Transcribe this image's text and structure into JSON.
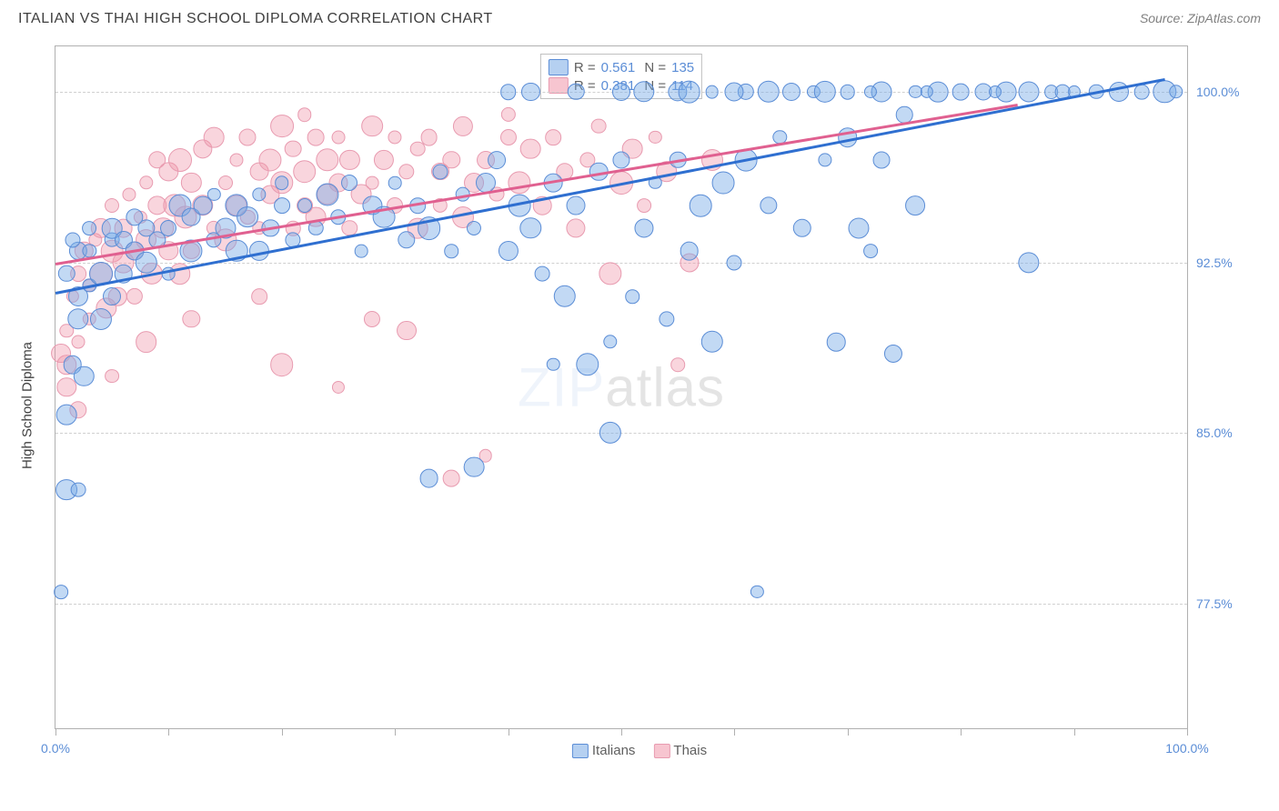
{
  "title": "ITALIAN VS THAI HIGH SCHOOL DIPLOMA CORRELATION CHART",
  "source": "Source: ZipAtlas.com",
  "ylabel": "High School Diploma",
  "watermark": {
    "pre": "ZIP",
    "post": "atlas"
  },
  "chart": {
    "type": "scatter",
    "background_color": "#ffffff",
    "grid_color": "#d0d0d0",
    "border_color": "#b0b0b0",
    "xlim": [
      0,
      100
    ],
    "ylim": [
      72,
      102
    ],
    "yticks": [
      {
        "v": 77.5,
        "label": "77.5%"
      },
      {
        "v": 85.0,
        "label": "85.0%"
      },
      {
        "v": 92.5,
        "label": "92.5%"
      },
      {
        "v": 100.0,
        "label": "100.0%"
      }
    ],
    "xtick_positions": [
      0,
      10,
      20,
      30,
      40,
      50,
      60,
      70,
      80,
      90,
      100
    ],
    "xlabels": [
      {
        "v": 0,
        "label": "0.0%"
      },
      {
        "v": 100,
        "label": "100.0%"
      }
    ],
    "label_color": "#5b8dd6",
    "label_fontsize": 14,
    "series": {
      "italians": {
        "label": "Italians",
        "color_fill": "rgba(120,170,230,0.45)",
        "color_stroke": "#5b8dd6",
        "marker_r": 10,
        "R": "0.561",
        "N": "135",
        "trend": {
          "x1": 0,
          "y1": 91.2,
          "x2": 98,
          "y2": 100.6,
          "color": "#2f6fd0",
          "width": 2.5
        },
        "points": [
          [
            1,
            82.5
          ],
          [
            1,
            85.8
          ],
          [
            1.5,
            88
          ],
          [
            2,
            91
          ],
          [
            2,
            90
          ],
          [
            2,
            93
          ],
          [
            2.5,
            87.5
          ],
          [
            3,
            91.5
          ],
          [
            3,
            93
          ],
          [
            3,
            94
          ],
          [
            4,
            90
          ],
          [
            4,
            92
          ],
          [
            5,
            93.5
          ],
          [
            5,
            91
          ],
          [
            5,
            94
          ],
          [
            6,
            92
          ],
          [
            6,
            93.5
          ],
          [
            7,
            93
          ],
          [
            7,
            94.5
          ],
          [
            8,
            92.5
          ],
          [
            8,
            94
          ],
          [
            9,
            93.5
          ],
          [
            10,
            94
          ],
          [
            10,
            92
          ],
          [
            11,
            95
          ],
          [
            12,
            93
          ],
          [
            12,
            94.5
          ],
          [
            13,
            95
          ],
          [
            14,
            93.5
          ],
          [
            14,
            95.5
          ],
          [
            15,
            94
          ],
          [
            16,
            93
          ],
          [
            16,
            95
          ],
          [
            17,
            94.5
          ],
          [
            18,
            95.5
          ],
          [
            18,
            93
          ],
          [
            19,
            94
          ],
          [
            20,
            95
          ],
          [
            20,
            96
          ],
          [
            21,
            93.5
          ],
          [
            22,
            95
          ],
          [
            23,
            94
          ],
          [
            24,
            95.5
          ],
          [
            25,
            94.5
          ],
          [
            26,
            96
          ],
          [
            27,
            93
          ],
          [
            28,
            95
          ],
          [
            29,
            94.5
          ],
          [
            30,
            96
          ],
          [
            31,
            93.5
          ],
          [
            32,
            95
          ],
          [
            33,
            94
          ],
          [
            34,
            96.5
          ],
          [
            35,
            93
          ],
          [
            36,
            95.5
          ],
          [
            37,
            94
          ],
          [
            38,
            96
          ],
          [
            39,
            97
          ],
          [
            40,
            93
          ],
          [
            41,
            95
          ],
          [
            42,
            94
          ],
          [
            43,
            92
          ],
          [
            44,
            96
          ],
          [
            45,
            91
          ],
          [
            46,
            95
          ],
          [
            47,
            88
          ],
          [
            48,
            96.5
          ],
          [
            49,
            85
          ],
          [
            50,
            97
          ],
          [
            51,
            91
          ],
          [
            52,
            94
          ],
          [
            53,
            96
          ],
          [
            54,
            90
          ],
          [
            55,
            97
          ],
          [
            56,
            93
          ],
          [
            57,
            95
          ],
          [
            58,
            89
          ],
          [
            59,
            96
          ],
          [
            60,
            92.5
          ],
          [
            61,
            97
          ],
          [
            62,
            78
          ],
          [
            63,
            95
          ],
          [
            64,
            98
          ],
          [
            66,
            94
          ],
          [
            68,
            97
          ],
          [
            69,
            89
          ],
          [
            70,
            98
          ],
          [
            71,
            94
          ],
          [
            72,
            93
          ],
          [
            73,
            97
          ],
          [
            74,
            88.5
          ],
          [
            75,
            99
          ],
          [
            76,
            95
          ],
          [
            78,
            100
          ],
          [
            80,
            100
          ],
          [
            82,
            100
          ],
          [
            84,
            100
          ],
          [
            86,
            100
          ],
          [
            88,
            100
          ],
          [
            90,
            100
          ],
          [
            92,
            100
          ],
          [
            94,
            100
          ],
          [
            96,
            100
          ],
          [
            98,
            100
          ],
          [
            99,
            100
          ],
          [
            67,
            100
          ],
          [
            70,
            100
          ],
          [
            73,
            100
          ],
          [
            76,
            100
          ],
          [
            52,
            100
          ],
          [
            55,
            100
          ],
          [
            58,
            100
          ],
          [
            61,
            100
          ],
          [
            44,
            88
          ],
          [
            49,
            89
          ],
          [
            37,
            83.5
          ],
          [
            33,
            83
          ],
          [
            2,
            82.5
          ],
          [
            1,
            92
          ],
          [
            1.5,
            93.5
          ],
          [
            0.5,
            78
          ],
          [
            65,
            100
          ],
          [
            63,
            100
          ],
          [
            60,
            100
          ],
          [
            56,
            100
          ],
          [
            50,
            100
          ],
          [
            46,
            100
          ],
          [
            42,
            100
          ],
          [
            40,
            100
          ],
          [
            86,
            92.5
          ],
          [
            68,
            100
          ],
          [
            72,
            100
          ],
          [
            77,
            100
          ],
          [
            83,
            100
          ],
          [
            89,
            100
          ]
        ]
      },
      "thais": {
        "label": "Thais",
        "color_fill": "rgba(240,150,170,0.40)",
        "color_stroke": "#e89bb0",
        "marker_r": 10,
        "R": "0.381",
        "N": "114",
        "trend": {
          "x1": 0,
          "y1": 92.5,
          "x2": 85,
          "y2": 99.5,
          "color": "#e06090",
          "width": 2.5
        },
        "points": [
          [
            1,
            88
          ],
          [
            1,
            89.5
          ],
          [
            1.5,
            91
          ],
          [
            2,
            89
          ],
          [
            2,
            92
          ],
          [
            2.5,
            93
          ],
          [
            3,
            90
          ],
          [
            3,
            91.5
          ],
          [
            3.5,
            93.5
          ],
          [
            4,
            92
          ],
          [
            4,
            94
          ],
          [
            4.5,
            90.5
          ],
          [
            5,
            93
          ],
          [
            5,
            95
          ],
          [
            5.5,
            91
          ],
          [
            6,
            94
          ],
          [
            6,
            92.5
          ],
          [
            6.5,
            95.5
          ],
          [
            7,
            93
          ],
          [
            7,
            91
          ],
          [
            7.5,
            94.5
          ],
          [
            8,
            96
          ],
          [
            8,
            93.5
          ],
          [
            8.5,
            92
          ],
          [
            9,
            95
          ],
          [
            9,
            97
          ],
          [
            9.5,
            94
          ],
          [
            10,
            93
          ],
          [
            10,
            96.5
          ],
          [
            10.5,
            95
          ],
          [
            11,
            92
          ],
          [
            11,
            97
          ],
          [
            11.5,
            94.5
          ],
          [
            12,
            96
          ],
          [
            12,
            93
          ],
          [
            13,
            97.5
          ],
          [
            13,
            95
          ],
          [
            14,
            94
          ],
          [
            14,
            98
          ],
          [
            15,
            96
          ],
          [
            15,
            93.5
          ],
          [
            16,
            97
          ],
          [
            16,
            95
          ],
          [
            17,
            94.5
          ],
          [
            17,
            98
          ],
          [
            18,
            96.5
          ],
          [
            18,
            94
          ],
          [
            19,
            97
          ],
          [
            19,
            95.5
          ],
          [
            20,
            96
          ],
          [
            20,
            98.5
          ],
          [
            21,
            94
          ],
          [
            21,
            97.5
          ],
          [
            22,
            95
          ],
          [
            22,
            96.5
          ],
          [
            23,
            98
          ],
          [
            23,
            94.5
          ],
          [
            24,
            97
          ],
          [
            24,
            95.5
          ],
          [
            25,
            96
          ],
          [
            25,
            98
          ],
          [
            26,
            97
          ],
          [
            26,
            94
          ],
          [
            27,
            95.5
          ],
          [
            28,
            98.5
          ],
          [
            28,
            96
          ],
          [
            29,
            97
          ],
          [
            30,
            95
          ],
          [
            30,
            98
          ],
          [
            31,
            96.5
          ],
          [
            32,
            94
          ],
          [
            32,
            97.5
          ],
          [
            33,
            98
          ],
          [
            34,
            95
          ],
          [
            34,
            96.5
          ],
          [
            35,
            97
          ],
          [
            36,
            94.5
          ],
          [
            36,
            98.5
          ],
          [
            37,
            96
          ],
          [
            38,
            97
          ],
          [
            39,
            95.5
          ],
          [
            40,
            98
          ],
          [
            41,
            96
          ],
          [
            42,
            97.5
          ],
          [
            43,
            95
          ],
          [
            44,
            98
          ],
          [
            45,
            96.5
          ],
          [
            46,
            94
          ],
          [
            47,
            97
          ],
          [
            48,
            98.5
          ],
          [
            49,
            92
          ],
          [
            50,
            96
          ],
          [
            51,
            97.5
          ],
          [
            52,
            95
          ],
          [
            53,
            98
          ],
          [
            54,
            96.5
          ],
          [
            56,
            92.5
          ],
          [
            58,
            97
          ],
          [
            55,
            88
          ],
          [
            25,
            87
          ],
          [
            28,
            90
          ],
          [
            31,
            89.5
          ],
          [
            35,
            83
          ],
          [
            38,
            84
          ],
          [
            20,
            88
          ],
          [
            18,
            91
          ],
          [
            12,
            90
          ],
          [
            8,
            89
          ],
          [
            5,
            87.5
          ],
          [
            2,
            86
          ],
          [
            1,
            87
          ],
          [
            0.5,
            88.5
          ],
          [
            22,
            99
          ],
          [
            40,
            99
          ]
        ]
      }
    }
  },
  "legend_top": {
    "swatch_blue_bg": "rgba(120,170,230,0.55)",
    "swatch_blue_border": "#5b8dd6",
    "swatch_pink_bg": "rgba(240,150,170,0.55)",
    "swatch_pink_border": "#e89bb0"
  },
  "legend_bottom": {
    "items": [
      {
        "label": "Italians",
        "bg": "rgba(120,170,230,0.55)",
        "border": "#5b8dd6"
      },
      {
        "label": "Thais",
        "bg": "rgba(240,150,170,0.55)",
        "border": "#e89bb0"
      }
    ]
  }
}
